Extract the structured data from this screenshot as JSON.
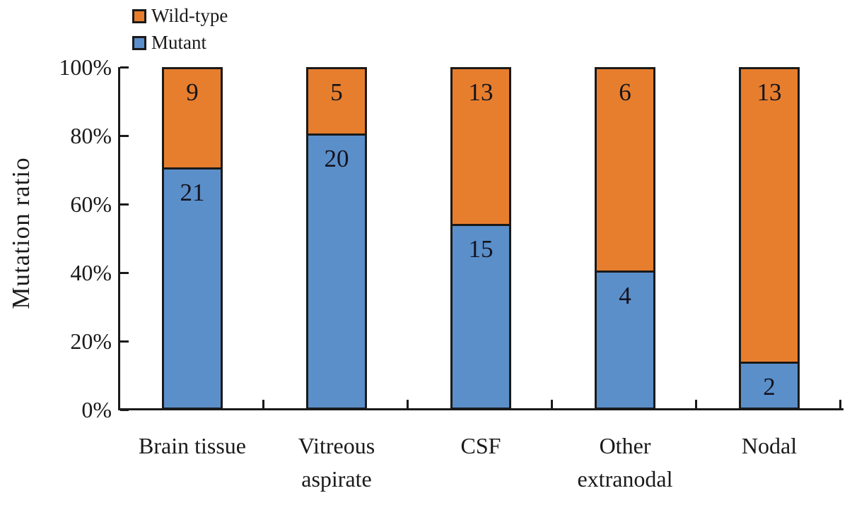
{
  "figure": {
    "background": "#ffffff"
  },
  "chart_data": {
    "type": "bar",
    "stacked": true,
    "normalized": "100%",
    "title": "",
    "xlabel": "",
    "ylabel": "Mutation ratio",
    "categories": [
      "Brain tissue",
      "Vitreous aspirate",
      "CSF",
      "Other extranodal",
      "Nodal"
    ],
    "categories_display": [
      "Brain tissue",
      "Vitreous\naspirate",
      "CSF",
      "Other\nextranodal",
      "Nodal"
    ],
    "series": [
      {
        "name": "Mutant",
        "color": "#5B8FCA",
        "values": [
          21,
          20,
          15,
          4,
          2
        ]
      },
      {
        "name": "Wild-type",
        "color": "#E77E2D",
        "values": [
          9,
          5,
          13,
          6,
          13
        ]
      }
    ],
    "mutant_percent_by_category": [
      70.0,
      80.0,
      53.6,
      40.0,
      13.3
    ],
    "y_axis": {
      "ticks": [
        "0%",
        "20%",
        "40%",
        "60%",
        "80%",
        "100%"
      ],
      "min": 0,
      "max": 100,
      "unit": "%"
    },
    "legend": {
      "position": "top-left",
      "entries": [
        "Wild-type",
        "Mutant"
      ]
    },
    "grid": false,
    "bar_border_color": "#1a1a1a",
    "axis_color": "#1a1a1a",
    "text_color": "#1a1a1a"
  }
}
